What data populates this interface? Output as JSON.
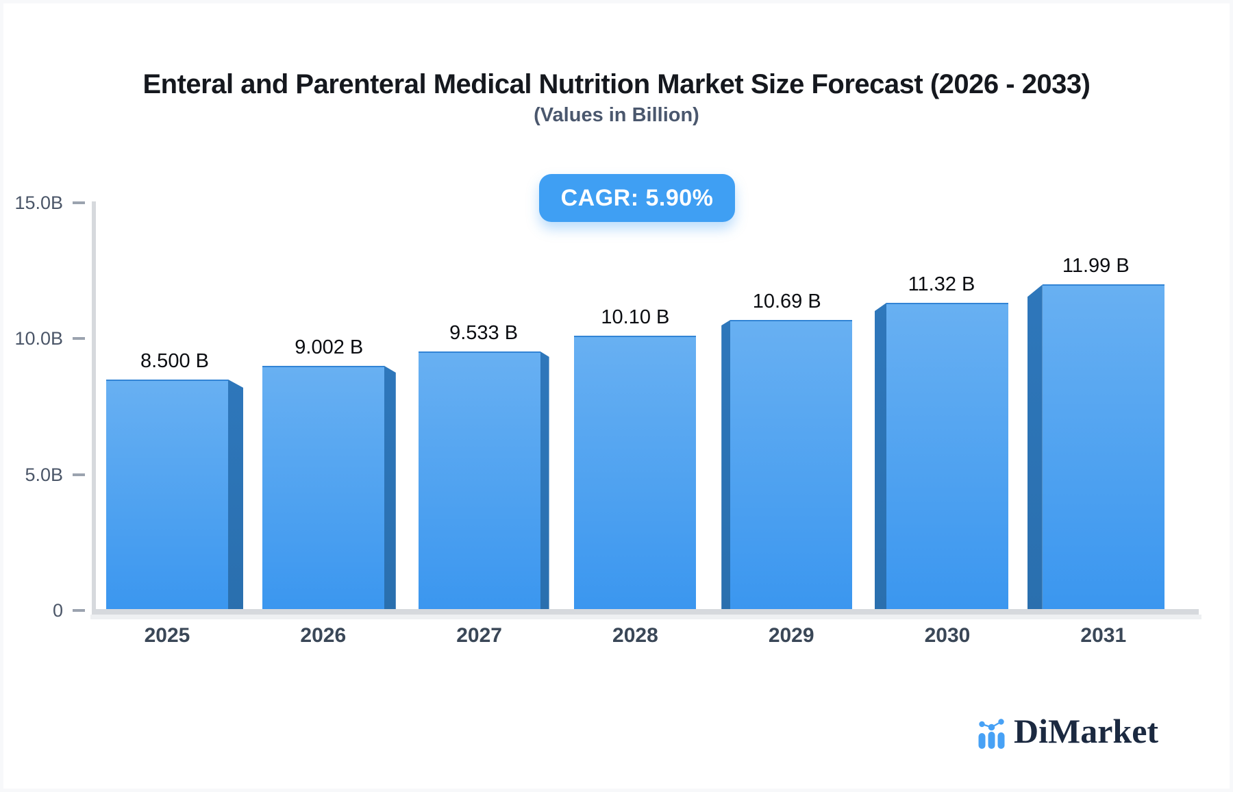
{
  "page": {
    "background": "#f7f8fa",
    "card_background": "#ffffff"
  },
  "header": {
    "title": "Enteral and Parenteral Medical Nutrition Market Size Forecast (2026 - 2033)",
    "subtitle": "(Values in Billion)"
  },
  "cagr_badge": {
    "label": "CAGR: 5.90%",
    "background": "#3f9ff3",
    "text_color": "#ffffff"
  },
  "chart_data": {
    "type": "bar",
    "title": "Enteral and Parenteral Medical Nutrition Market Size Forecast (2026 - 2033)",
    "subtitle": "(Values in Billion)",
    "categories": [
      "2025",
      "2026",
      "2027",
      "2028",
      "2029",
      "2030",
      "2031"
    ],
    "values": [
      8.5,
      9.002,
      9.533,
      10.1,
      10.69,
      11.32,
      11.99
    ],
    "value_labels": [
      "8.500 B",
      "9.002 B",
      "9.533 B",
      "10.10 B",
      "10.69 B",
      "11.32 B",
      "11.99 B"
    ],
    "xlabel": "",
    "ylabel": "",
    "ylim": [
      0,
      15
    ],
    "yticks": [
      {
        "value": 15,
        "label": "15.0B"
      },
      {
        "value": 10,
        "label": "10.0B"
      },
      {
        "value": 5,
        "label": "5.0B"
      },
      {
        "value": 0,
        "label": "0"
      }
    ],
    "grid": false,
    "legend": false,
    "style": "3d-beveled-bars-center-perspective",
    "annotations": [
      {
        "text": "CAGR: 5.90%",
        "position": "top-center"
      }
    ],
    "colors": {
      "bar_top": "#68b0f2",
      "bar_bottom": "#3a96ef",
      "bar_side": "#2e77bb",
      "bar_side_dark": "#2a6fae",
      "axis_line": "#d6d9dd",
      "axis_line_soft": "#eef0f2",
      "tick": "#9ba3af",
      "y_label": "#4b5668",
      "x_label": "#3a4757",
      "value_label": "#0b0d11"
    }
  },
  "branding": {
    "name": "DiMarket",
    "icon": "mini-bar-chart-logo-icon",
    "icon_color": "#47a1f5",
    "text_color": "#1b2940"
  }
}
